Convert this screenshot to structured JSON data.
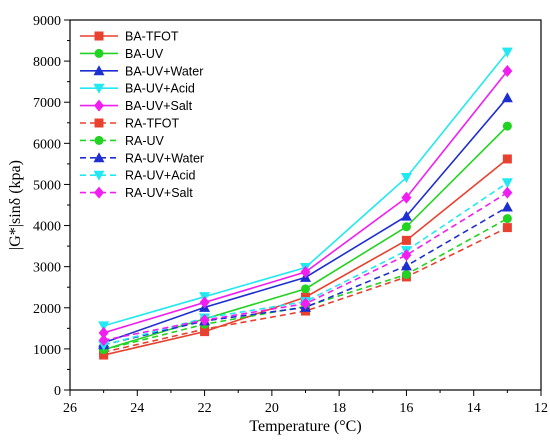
{
  "chart_data": {
    "type": "line",
    "title": "",
    "xlabel": "Temperature (°C)",
    "ylabel": "|G*|sinδ (kpa)",
    "x": [
      25,
      22,
      19,
      16,
      13
    ],
    "xlim": [
      26,
      12
    ],
    "x_reversed": true,
    "ylim": [
      0,
      9000
    ],
    "xticks": [
      26,
      24,
      22,
      20,
      18,
      16,
      14,
      12
    ],
    "yticks": [
      0,
      1000,
      2000,
      3000,
      4000,
      5000,
      6000,
      7000,
      8000,
      9000
    ],
    "grid": false,
    "legend_position": "top-left",
    "series": [
      {
        "name": "BA-TFOT",
        "color": "#e8412f",
        "marker": "square",
        "dash": "solid",
        "values": [
          850,
          1420,
          2260,
          3640,
          5620
        ]
      },
      {
        "name": "BA-UV",
        "color": "#22d322",
        "marker": "circle",
        "dash": "solid",
        "values": [
          980,
          1730,
          2460,
          3970,
          6420
        ]
      },
      {
        "name": "BA-UV+Water",
        "color": "#1e2fd2",
        "marker": "triangle-up",
        "dash": "solid",
        "values": [
          1150,
          2010,
          2740,
          4230,
          7110
        ]
      },
      {
        "name": "BA-UV+Acid",
        "color": "#22e8f2",
        "marker": "triangle-down",
        "dash": "solid",
        "values": [
          1560,
          2270,
          2980,
          5170,
          8220
        ]
      },
      {
        "name": "BA-UV+Salt",
        "color": "#f01ef0",
        "marker": "diamond",
        "dash": "solid",
        "values": [
          1390,
          2130,
          2870,
          4680,
          7760
        ]
      },
      {
        "name": "RA-TFOT",
        "color": "#e8412f",
        "marker": "square",
        "dash": "dashed",
        "values": [
          920,
          1480,
          1920,
          2750,
          3950
        ]
      },
      {
        "name": "RA-UV",
        "color": "#22d322",
        "marker": "circle",
        "dash": "dashed",
        "values": [
          980,
          1600,
          2030,
          2810,
          4170
        ]
      },
      {
        "name": "RA-UV+Water",
        "color": "#1e2fd2",
        "marker": "triangle-up",
        "dash": "dashed",
        "values": [
          1100,
          1680,
          2010,
          3020,
          4450
        ]
      },
      {
        "name": "RA-UV+Acid",
        "color": "#22e8f2",
        "marker": "triangle-down",
        "dash": "dashed",
        "values": [
          1090,
          1750,
          2150,
          3390,
          5040
        ]
      },
      {
        "name": "RA-UV+Salt",
        "color": "#f01ef0",
        "marker": "diamond",
        "dash": "dashed",
        "values": [
          1210,
          1700,
          2100,
          3280,
          4800
        ]
      }
    ]
  }
}
